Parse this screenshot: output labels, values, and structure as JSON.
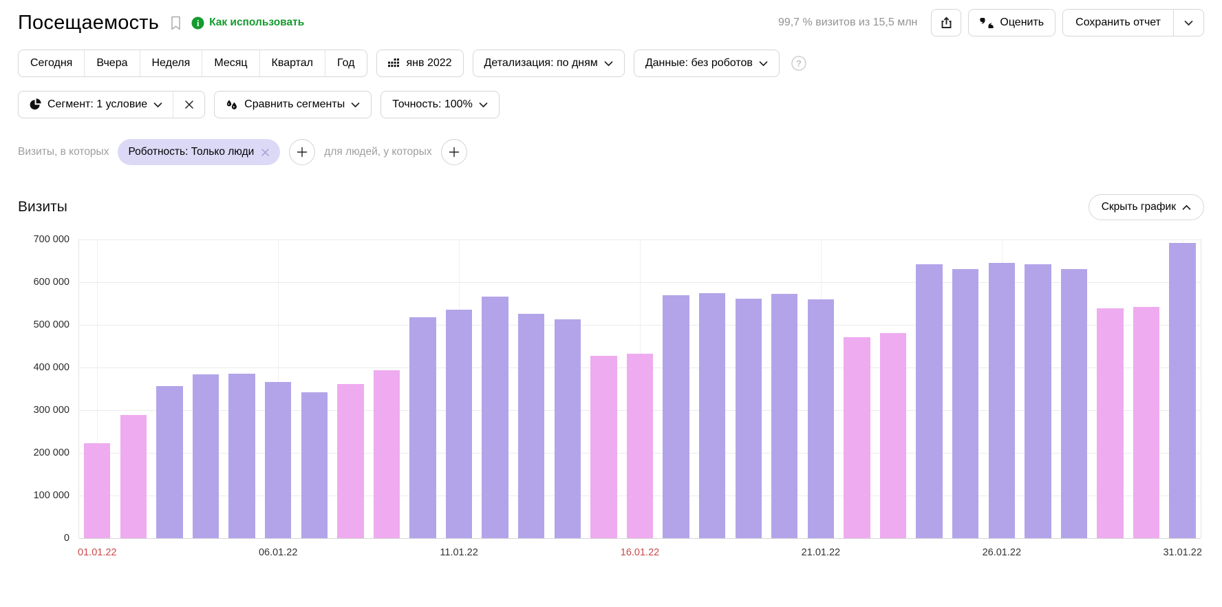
{
  "header": {
    "title": "Посещаемость",
    "how_to_link": "Как использовать",
    "stats": "99,7 % визитов из 15,5 млн",
    "rate_button": "Оценить",
    "save_report_button": "Сохранить отчет"
  },
  "toolbar": {
    "period_tabs": [
      "Сегодня",
      "Вчера",
      "Неделя",
      "Месяц",
      "Квартал",
      "Год"
    ],
    "calendar_button": "янв 2022",
    "detail_dropdown": "Детализация: по дням",
    "data_dropdown": "Данные: без роботов"
  },
  "segments": {
    "segment_dropdown": "Сегмент: 1 условие",
    "compare_dropdown": "Сравнить сегменты",
    "accuracy_dropdown": "Точность: 100%"
  },
  "filters": {
    "visits_label": "Визиты, в которых",
    "chip_label": "Роботность: Только люди",
    "people_label": "для людей, у которых"
  },
  "chart_section": {
    "title": "Визиты",
    "hide_chart_button": "Скрыть график"
  },
  "chart_data": {
    "type": "bar",
    "title": "Визиты",
    "ylabel": "",
    "xlabel": "",
    "ylim": [
      0,
      700000
    ],
    "grid": true,
    "dates": [
      "01.01.22",
      "02.01.22",
      "03.01.22",
      "04.01.22",
      "05.01.22",
      "06.01.22",
      "07.01.22",
      "08.01.22",
      "09.01.22",
      "10.01.22",
      "11.01.22",
      "12.01.22",
      "13.01.22",
      "14.01.22",
      "15.01.22",
      "16.01.22",
      "17.01.22",
      "18.01.22",
      "19.01.22",
      "20.01.22",
      "21.01.22",
      "22.01.22",
      "23.01.22",
      "24.01.22",
      "25.01.22",
      "26.01.22",
      "27.01.22",
      "28.01.22",
      "29.01.22",
      "30.01.22",
      "31.01.22"
    ],
    "values": [
      222000,
      288000,
      356000,
      384000,
      386000,
      366000,
      342000,
      362000,
      393000,
      518000,
      535000,
      566000,
      526000,
      513000,
      427000,
      433000,
      570000,
      574000,
      561000,
      573000,
      560000,
      471000,
      480000,
      642000,
      631000,
      645000,
      642000,
      631000,
      539000,
      542000,
      692000
    ],
    "weekend_pink": [
      true,
      true,
      false,
      false,
      false,
      false,
      false,
      true,
      true,
      false,
      false,
      false,
      false,
      false,
      true,
      true,
      false,
      false,
      false,
      false,
      false,
      true,
      true,
      false,
      false,
      false,
      false,
      false,
      true,
      true,
      false
    ],
    "y_ticks_top_down": [
      "700 000",
      "600 000",
      "500 000",
      "400 000",
      "300 000",
      "200 000",
      "100 000",
      "0"
    ],
    "x_ticks": [
      {
        "label": "01.01.22",
        "index": 0,
        "highlight": true
      },
      {
        "label": "06.01.22",
        "index": 5,
        "highlight": false
      },
      {
        "label": "11.01.22",
        "index": 10,
        "highlight": false
      },
      {
        "label": "16.01.22",
        "index": 15,
        "highlight": true
      },
      {
        "label": "21.01.22",
        "index": 20,
        "highlight": false
      },
      {
        "label": "26.01.22",
        "index": 25,
        "highlight": false
      },
      {
        "label": "31.01.22",
        "index": 30,
        "highlight": false
      }
    ],
    "colors": {
      "weekday_bar": "#b3a4e9",
      "weekend_bar": "#eeabef",
      "tick_highlight": "#c94a4a",
      "tick_normal": "#333333"
    }
  }
}
